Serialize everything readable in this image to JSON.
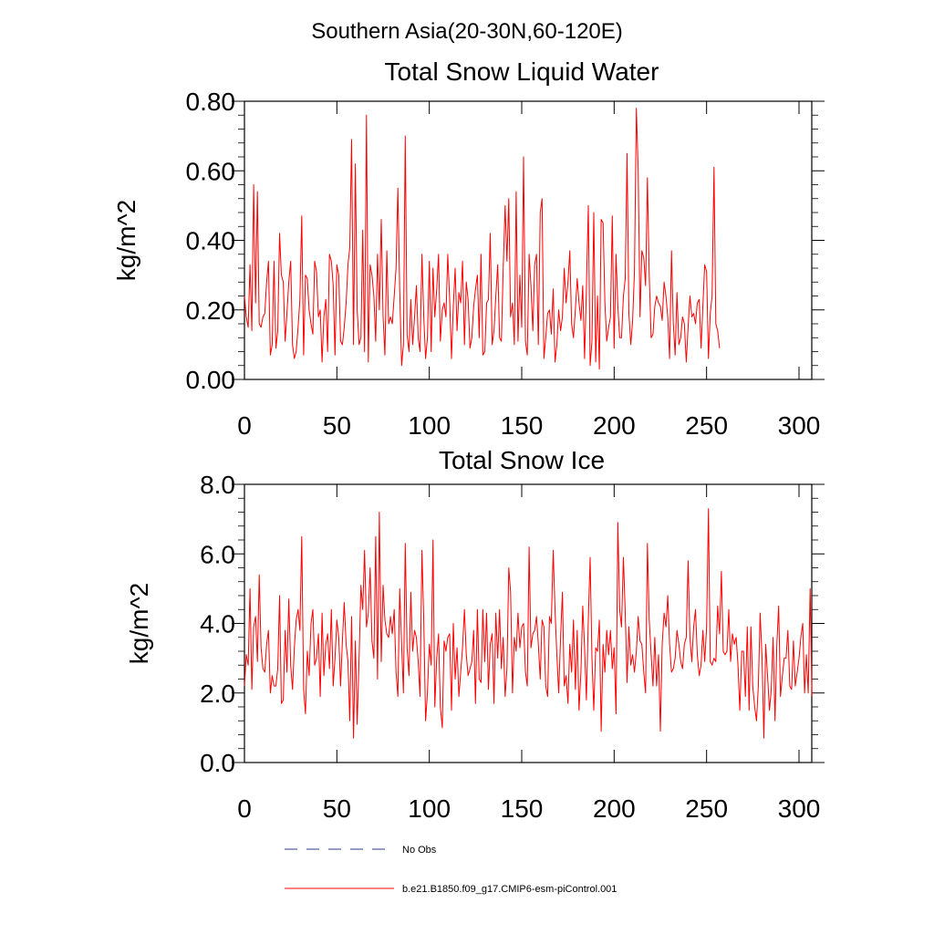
{
  "supertitle": "Southern Asia(20-30N,60-120E)",
  "colors": {
    "series": "#ff0000",
    "no_obs": "#2b3a8c",
    "axis": "#000000"
  },
  "legend": [
    {
      "label": "No Obs",
      "style": "dashed",
      "color": "#2b3a8c"
    },
    {
      "label": "b.e21.B1850.f09_g17.CMIP6-esm-piControl.001",
      "style": "solid",
      "color": "#ff0000"
    }
  ],
  "chart_data": [
    {
      "type": "line",
      "title": "Total Snow Liquid Water",
      "xlabel": "",
      "ylabel": "kg/m^2",
      "xlim": [
        0,
        300
      ],
      "ylim": [
        0,
        0.8
      ],
      "xticks": [
        "0",
        "50",
        "100",
        "150",
        "200",
        "250",
        "300"
      ],
      "yticks": [
        "0.00",
        "0.20",
        "0.40",
        "0.60",
        "0.80"
      ],
      "series": [
        {
          "name": "b.e21.B1850.f09_g17.CMIP6-esm-piControl.001",
          "x_start": 0,
          "values": [
            0.24,
            0.18,
            0.15,
            0.33,
            0.14,
            0.56,
            0.22,
            0.54,
            0.16,
            0.15,
            0.18,
            0.19,
            0.28,
            0.34,
            0.07,
            0.1,
            0.34,
            0.09,
            0.14,
            0.42,
            0.3,
            0.28,
            0.11,
            0.19,
            0.28,
            0.34,
            0.1,
            0.06,
            0.08,
            0.15,
            0.23,
            0.47,
            0.07,
            0.3,
            0.29,
            0.2,
            0.16,
            0.13,
            0.34,
            0.31,
            0.18,
            0.2,
            0.05,
            0.18,
            0.23,
            0.08,
            0.36,
            0.34,
            0.27,
            0.07,
            0.33,
            0.3,
            0.11,
            0.1,
            0.15,
            0.22,
            0.33,
            0.38,
            0.69,
            0.1,
            0.62,
            0.2,
            0.1,
            0.12,
            0.43,
            0.08,
            0.76,
            0.05,
            0.33,
            0.3,
            0.24,
            0.11,
            0.36,
            0.2,
            0.46,
            0.18,
            0.07,
            0.37,
            0.16,
            0.18,
            0.16,
            0.24,
            0.32,
            0.55,
            0.26,
            0.04,
            0.1,
            0.7,
            0.13,
            0.08,
            0.23,
            0.1,
            0.18,
            0.27,
            0.12,
            0.08,
            0.36,
            0.18,
            0.06,
            0.12,
            0.34,
            0.08,
            0.32,
            0.18,
            0.26,
            0.36,
            0.11,
            0.2,
            0.22,
            0.18,
            0.36,
            0.23,
            0.06,
            0.21,
            0.32,
            0.14,
            0.25,
            0.22,
            0.34,
            0.1,
            0.28,
            0.23,
            0.09,
            0.12,
            0.21,
            0.26,
            0.3,
            0.12,
            0.36,
            0.07,
            0.08,
            0.22,
            0.23,
            0.42,
            0.1,
            0.14,
            0.24,
            0.33,
            0.12,
            0.11,
            0.32,
            0.5,
            0.34,
            0.52,
            0.18,
            0.22,
            0.1,
            0.54,
            0.11,
            0.3,
            0.15,
            0.64,
            0.11,
            0.07,
            0.36,
            0.27,
            0.14,
            0.33,
            0.36,
            0.1,
            0.48,
            0.52,
            0.06,
            0.12,
            0.19,
            0.2,
            0.13,
            0.26,
            0.05,
            0.1,
            0.2,
            0.14,
            0.18,
            0.32,
            0.22,
            0.28,
            0.37,
            0.16,
            0.12,
            0.2,
            0.29,
            0.22,
            0.17,
            0.27,
            0.06,
            0.26,
            0.5,
            0.04,
            0.11,
            0.48,
            0.05,
            0.24,
            0.03,
            0.46,
            0.45,
            0.22,
            0.11,
            0.15,
            0.18,
            0.47,
            0.09,
            0.36,
            0.21,
            0.12,
            0.12,
            0.24,
            0.29,
            0.65,
            0.19,
            0.1,
            0.17,
            0.31,
            0.78,
            0.6,
            0.18,
            0.37,
            0.35,
            0.27,
            0.58,
            0.3,
            0.12,
            0.13,
            0.21,
            0.24,
            0.22,
            0.21,
            0.17,
            0.28,
            0.24,
            0.18,
            0.06,
            0.37,
            0.16,
            0.07,
            0.25,
            0.1,
            0.12,
            0.18,
            0.16,
            0.05,
            0.15,
            0.24,
            0.18,
            0.19,
            0.16,
            0.22,
            0.23,
            0.09,
            0.21,
            0.33,
            0.31,
            0.06,
            0.19,
            0.24,
            0.61,
            0.16,
            0.14,
            0.09
          ]
        }
      ]
    },
    {
      "type": "line",
      "title": "Total Snow Ice",
      "xlabel": "",
      "ylabel": "kg/m^2",
      "xlim": [
        0,
        300
      ],
      "ylim": [
        0,
        8
      ],
      "xticks": [
        "0",
        "50",
        "100",
        "150",
        "200",
        "250",
        "300"
      ],
      "yticks": [
        "0.0",
        "2.0",
        "4.0",
        "6.0",
        "8.0"
      ],
      "series": [
        {
          "name": "b.e21.B1850.f09_g17.CMIP6-esm-piControl.001",
          "x_start": 0,
          "values": [
            2.2,
            3.1,
            2.8,
            5.0,
            2.1,
            3.9,
            4.2,
            2.9,
            5.4,
            3.3,
            2.7,
            2.6,
            3.4,
            3.8,
            2.0,
            2.5,
            2.2,
            2.2,
            2.7,
            4.8,
            1.7,
            1.8,
            3.8,
            2.6,
            4.7,
            2.8,
            2.1,
            3.3,
            4.1,
            4.4,
            3.8,
            6.5,
            2.1,
            1.4,
            3.2,
            2.5,
            4.0,
            4.4,
            2.8,
            3.0,
            3.7,
            1.9,
            4.3,
            2.5,
            3.4,
            3.7,
            2.7,
            4.4,
            2.2,
            3.0,
            4.1,
            3.6,
            2.2,
            3.5,
            4.6,
            3.4,
            2.9,
            1.2,
            4.2,
            0.7,
            3.5,
            1.1,
            3.0,
            5.1,
            4.4,
            6.1,
            3.9,
            4.3,
            5.6,
            3.5,
            3.0,
            6.5,
            2.4,
            7.2,
            2.9,
            5.1,
            4.1,
            3.7,
            3.6,
            4.2,
            3.7,
            4.4,
            2.6,
            1.9,
            5.0,
            3.4,
            2.0,
            6.3,
            3.3,
            2.5,
            4.9,
            3.2,
            3.8,
            3.6,
            2.9,
            1.9,
            6.1,
            4.1,
            1.2,
            2.0,
            3.4,
            2.8,
            6.4,
            1.6,
            3.0,
            3.7,
            1.6,
            1.0,
            3.5,
            3.2,
            3.6,
            3.7,
            1.5,
            4.0,
            2.4,
            3.3,
            1.9,
            2.6,
            3.3,
            4.4,
            3.1,
            2.5,
            2.7,
            2.9,
            3.8,
            1.7,
            4.4,
            2.4,
            2.3,
            4.4,
            2.9,
            4.3,
            2.1,
            3.4,
            3.7,
            1.7,
            4.3,
            3.0,
            4.4,
            2.7,
            3.6,
            1.9,
            2.7,
            5.6,
            4.9,
            2.0,
            3.6,
            3.2,
            4.3,
            3.3,
            3.9,
            4.0,
            2.6,
            2.2,
            6.2,
            3.3,
            3.7,
            3.8,
            4.2,
            3.4,
            2.4,
            4.1,
            3.9,
            2.2,
            1.9,
            4.2,
            4.0,
            6.1,
            4.4,
            3.1,
            2.0,
            3.6,
            4.9,
            2.2,
            2.5,
            1.7,
            3.4,
            2.6,
            4.1,
            2.1,
            3.8,
            1.5,
            2.6,
            4.5,
            3.3,
            1.8,
            4.1,
            5.9,
            3.0,
            1.5,
            3.3,
            3.2,
            4.1,
            0.9,
            3.4,
            2.6,
            3.8,
            3.1,
            3.8,
            2.7,
            3.3,
            1.4,
            6.9,
            4.4,
            3.9,
            5.9,
            4.3,
            2.3,
            3.9,
            2.8,
            3.1,
            2.6,
            3.2,
            4.2,
            3.5,
            3.4,
            2.6,
            2.0,
            6.3,
            4.1,
            3.1,
            2.2,
            3.6,
            2.2,
            3.1,
            0.9,
            3.4,
            4.3,
            3.9,
            4.8,
            3.4,
            2.6,
            2.7,
            3.0,
            3.8,
            3.4,
            2.9,
            2.7,
            3.4,
            3.6,
            5.8,
            3.6,
            2.9,
            3.9,
            4.4,
            3.1,
            2.5,
            2.8,
            3.8,
            2.9,
            3.9,
            7.3,
            2.9,
            2.8,
            3.0,
            2.9,
            4.5,
            3.7,
            5.5,
            3.2,
            3.1,
            3.2,
            4.4,
            2.9,
            3.7,
            3.4,
            3.6,
            2.8,
            1.5,
            3.2,
            3.2,
            1.9,
            3.9,
            1.5,
            3.9,
            2.2,
            1.6,
            1.2,
            2.2,
            4.3,
            3.0,
            0.7,
            3.4,
            2.5,
            1.5,
            2.1,
            3.6,
            1.2,
            3.4,
            4.5,
            1.9,
            2.5,
            3.0,
            3.0,
            3.8,
            2.2,
            2.1,
            3.5,
            2.2,
            2.6,
            3.0,
            3.6,
            4.0,
            2.0,
            3.1,
            2.0,
            5.0,
            1.9
          ]
        }
      ]
    }
  ]
}
